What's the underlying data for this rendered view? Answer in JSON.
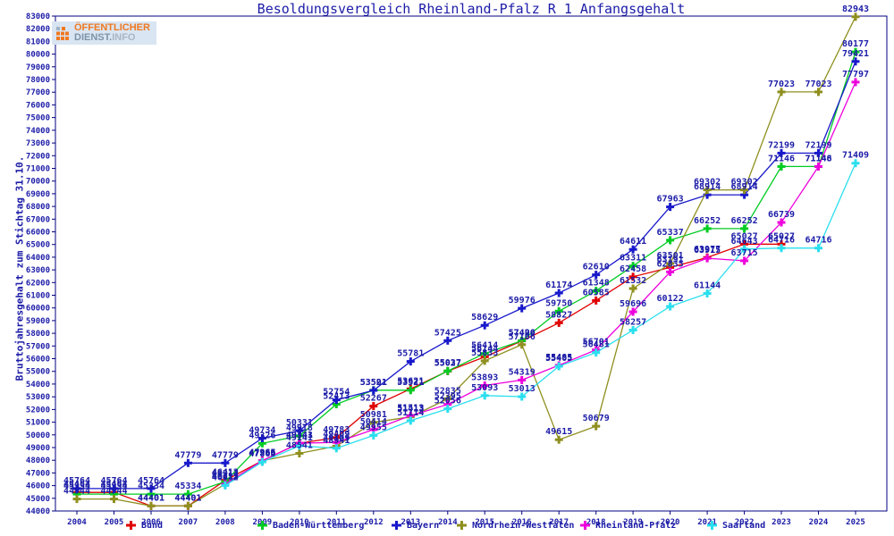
{
  "title": "Besoldungsvergleich Rheinland-Pfalz R 1 Anfangsgehalt",
  "y_axis_label": "Bruttojahresgehalt zum Stichtag 31.10.",
  "logo": {
    "line1": "ÖFFENTLICHER",
    "line2_a": "DIENST.",
    "line2_b": "INFO",
    "orange": "#f07820",
    "gray": "#7d93a8"
  },
  "colors": {
    "axis": "#000080",
    "text": "#1c1ca8"
  },
  "chart_data": {
    "type": "line",
    "title": "Besoldungsvergleich Rheinland-Pfalz R 1 Anfangsgehalt",
    "ylabel": "Bruttojahresgehalt zum Stichtag 31.10.",
    "xlabel": "",
    "grid": false,
    "legend_position": "bottom",
    "ylim": [
      44000,
      83000
    ],
    "ytick_step": 1000,
    "x": [
      2004,
      2005,
      2006,
      2007,
      2008,
      2009,
      2010,
      2011,
      2012,
      2013,
      2014,
      2015,
      2016,
      2017,
      2018,
      2019,
      2020,
      2021,
      2022,
      2023,
      2024,
      2025
    ],
    "series": [
      {
        "name": "Bund",
        "color": "#e00000",
        "values": [
          45464,
          45464,
          44401,
          44401,
          46413,
          47966,
          49343,
          49783,
          52267,
          53621,
          55027,
          56144,
          57406,
          58827,
          60585,
          62458,
          63191,
          63977,
          65027,
          65027,
          null,
          null
        ]
      },
      {
        "name": "Baden-Württemberg",
        "color": "#00cc22",
        "values": [
          45334,
          45334,
          45334,
          45334,
          46313,
          49326,
          49918,
          52413,
          53521,
          53521,
          55037,
          56414,
          57420,
          59750,
          61348,
          63311,
          65337,
          66252,
          66252,
          71146,
          71146,
          80177
        ]
      },
      {
        "name": "Bayern",
        "color": "#1818cc",
        "values": [
          45764,
          45764,
          45764,
          47779,
          47779,
          49734,
          50331,
          52754,
          53501,
          55781,
          57425,
          58629,
          59976,
          61174,
          62610,
          64611,
          67963,
          68914,
          68914,
          72199,
          72199,
          79421
        ]
      },
      {
        "name": "Nordrhein-Westfalen",
        "color": "#8f8f1f",
        "values": [
          44944,
          44944,
          44401,
          44401,
          46113,
          47966,
          48541,
          49109,
          50981,
          51413,
          52835,
          55833,
          57106,
          49615,
          50679,
          61532,
          63501,
          69302,
          69302,
          77023,
          77023,
          82943
        ]
      },
      {
        "name": "Rheinland-Pfalz",
        "color": "#ee00dd",
        "values": [
          null,
          null,
          null,
          null,
          46112,
          47965,
          49341,
          49409,
          50414,
          51513,
          52395,
          53893,
          54319,
          55485,
          56701,
          59696,
          62835,
          63915,
          63715,
          66739,
          71148,
          77797
        ]
      },
      {
        "name": "Saarland",
        "color": "#2adfee",
        "values": [
          null,
          null,
          null,
          null,
          46012,
          47865,
          49141,
          48941,
          49955,
          51114,
          52056,
          53093,
          53013,
          55405,
          56481,
          58257,
          60122,
          61144,
          64643,
          64716,
          64716,
          71409
        ]
      }
    ]
  }
}
